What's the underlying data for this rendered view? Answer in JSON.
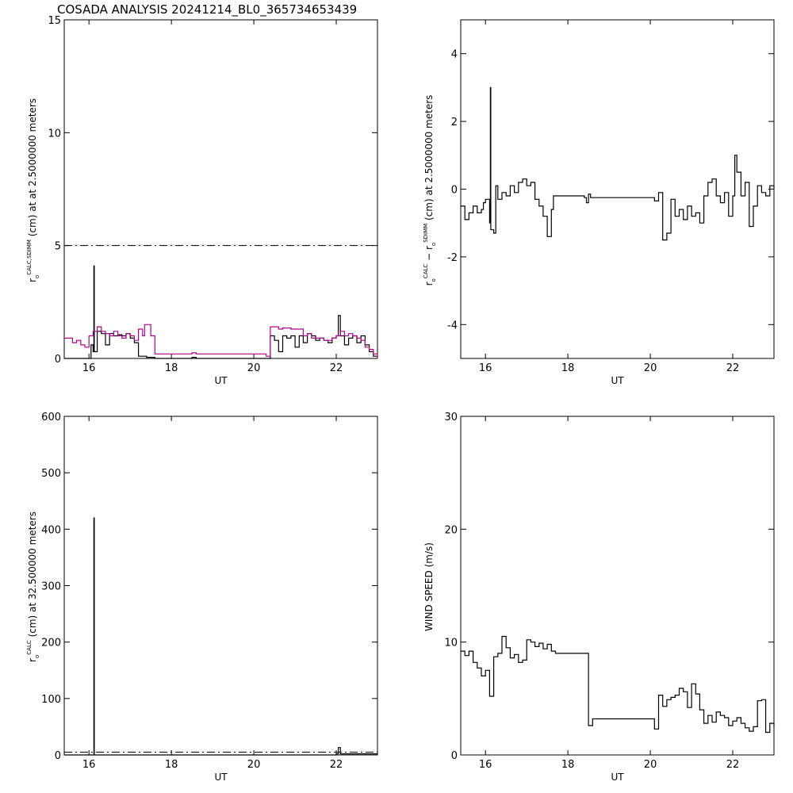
{
  "title": "COSADA ANALYSIS 20241214_BL0_365734653439",
  "chart_data": [
    {
      "type": "line",
      "xlabel": "UT",
      "ylabel_parts": [
        "r",
        "o",
        "CALC,SDIMM",
        " (cm) at  at 2.5000000 meters"
      ],
      "xlim": [
        15.4,
        23.0
      ],
      "ylim": [
        0,
        15
      ],
      "xticks": [
        16,
        18,
        20,
        22
      ],
      "yticks": [
        0,
        5,
        10,
        15
      ],
      "reference_line": {
        "y": 5,
        "style": "dash-dot"
      },
      "series": [
        {
          "color": "#000000",
          "points": [
            [
              15.4,
              0.0
            ],
            [
              16.0,
              0.0
            ],
            [
              16.05,
              0.6
            ],
            [
              16.1,
              0.3
            ],
            [
              16.12,
              4.1
            ],
            [
              16.13,
              0.3
            ],
            [
              16.2,
              1.2
            ],
            [
              16.3,
              1.1
            ],
            [
              16.4,
              0.6
            ],
            [
              16.5,
              1.1
            ],
            [
              16.6,
              1.0
            ],
            [
              16.7,
              1.05
            ],
            [
              16.8,
              1.0
            ],
            [
              16.9,
              1.1
            ],
            [
              17.0,
              0.9
            ],
            [
              17.1,
              0.7
            ],
            [
              17.2,
              0.1
            ],
            [
              17.4,
              0.05
            ],
            [
              17.6,
              0.0
            ],
            [
              17.8,
              0.0
            ],
            [
              18.0,
              0.0
            ],
            [
              18.4,
              0.0
            ],
            [
              18.5,
              0.05
            ],
            [
              18.6,
              0.0
            ],
            [
              20.0,
              0.0
            ],
            [
              20.3,
              0.0
            ],
            [
              20.4,
              1.0
            ],
            [
              20.5,
              0.8
            ],
            [
              20.6,
              0.3
            ],
            [
              20.7,
              1.0
            ],
            [
              20.8,
              0.9
            ],
            [
              20.9,
              1.0
            ],
            [
              21.0,
              0.5
            ],
            [
              21.1,
              1.0
            ],
            [
              21.2,
              0.7
            ],
            [
              21.3,
              1.1
            ],
            [
              21.4,
              1.0
            ],
            [
              21.5,
              0.8
            ],
            [
              21.6,
              0.9
            ],
            [
              21.7,
              0.8
            ],
            [
              21.8,
              0.7
            ],
            [
              21.9,
              0.9
            ],
            [
              22.0,
              1.0
            ],
            [
              22.05,
              1.9
            ],
            [
              22.1,
              1.0
            ],
            [
              22.2,
              0.6
            ],
            [
              22.3,
              0.9
            ],
            [
              22.4,
              1.0
            ],
            [
              22.5,
              0.7
            ],
            [
              22.6,
              1.0
            ],
            [
              22.7,
              0.6
            ],
            [
              22.8,
              0.3
            ],
            [
              22.9,
              0.1
            ],
            [
              23.0,
              0.0
            ]
          ]
        },
        {
          "color": "#b0008c",
          "points": [
            [
              15.4,
              0.9
            ],
            [
              15.6,
              0.7
            ],
            [
              15.7,
              0.8
            ],
            [
              15.8,
              0.6
            ],
            [
              15.9,
              0.5
            ],
            [
              16.0,
              1.0
            ],
            [
              16.1,
              1.2
            ],
            [
              16.2,
              1.4
            ],
            [
              16.3,
              1.2
            ],
            [
              16.4,
              1.1
            ],
            [
              16.5,
              1.0
            ],
            [
              16.6,
              1.2
            ],
            [
              16.7,
              1.0
            ],
            [
              16.8,
              0.9
            ],
            [
              16.9,
              1.1
            ],
            [
              17.0,
              1.0
            ],
            [
              17.1,
              0.8
            ],
            [
              17.2,
              1.3
            ],
            [
              17.3,
              1.0
            ],
            [
              17.35,
              1.5
            ],
            [
              17.5,
              1.0
            ],
            [
              17.6,
              0.2
            ],
            [
              18.0,
              0.2
            ],
            [
              18.4,
              0.2
            ],
            [
              18.5,
              0.25
            ],
            [
              18.6,
              0.2
            ],
            [
              20.0,
              0.2
            ],
            [
              20.2,
              0.2
            ],
            [
              20.3,
              0.1
            ],
            [
              20.4,
              1.4
            ],
            [
              20.6,
              1.3
            ],
            [
              20.7,
              1.35
            ],
            [
              20.9,
              1.3
            ],
            [
              21.1,
              1.3
            ],
            [
              21.2,
              1.0
            ],
            [
              21.3,
              1.1
            ],
            [
              21.4,
              0.9
            ],
            [
              21.6,
              0.9
            ],
            [
              21.7,
              0.8
            ],
            [
              21.9,
              0.9
            ],
            [
              22.0,
              1.0
            ],
            [
              22.1,
              1.2
            ],
            [
              22.2,
              1.0
            ],
            [
              22.3,
              1.1
            ],
            [
              22.4,
              1.0
            ],
            [
              22.5,
              0.9
            ],
            [
              22.6,
              0.8
            ],
            [
              22.7,
              0.5
            ],
            [
              22.8,
              0.4
            ],
            [
              22.9,
              0.2
            ],
            [
              23.0,
              0.0
            ]
          ]
        }
      ]
    },
    {
      "type": "line",
      "xlabel": "UT",
      "ylabel_parts": [
        "r",
        "o",
        "CALC",
        " − r",
        "o",
        "SDIMM",
        " (cm) at 2.5000000 meters"
      ],
      "xlim": [
        15.4,
        23.0
      ],
      "ylim": [
        -5,
        5
      ],
      "xticks": [
        16,
        18,
        20,
        22
      ],
      "yticks": [
        -4,
        -2,
        0,
        2,
        4
      ],
      "series": [
        {
          "color": "#000000",
          "points": [
            [
              15.4,
              -0.5
            ],
            [
              15.5,
              -0.9
            ],
            [
              15.6,
              -0.7
            ],
            [
              15.7,
              -0.5
            ],
            [
              15.8,
              -0.7
            ],
            [
              15.9,
              -0.6
            ],
            [
              15.95,
              -0.4
            ],
            [
              16.0,
              -0.3
            ],
            [
              16.1,
              -1.0
            ],
            [
              16.12,
              3.0
            ],
            [
              16.13,
              -1.2
            ],
            [
              16.2,
              -1.3
            ],
            [
              16.25,
              0.1
            ],
            [
              16.3,
              -0.3
            ],
            [
              16.4,
              -0.1
            ],
            [
              16.5,
              -0.2
            ],
            [
              16.6,
              0.1
            ],
            [
              16.7,
              -0.1
            ],
            [
              16.8,
              0.2
            ],
            [
              16.9,
              0.3
            ],
            [
              17.0,
              0.1
            ],
            [
              17.1,
              0.2
            ],
            [
              17.2,
              -0.3
            ],
            [
              17.3,
              -0.5
            ],
            [
              17.4,
              -0.8
            ],
            [
              17.5,
              -1.4
            ],
            [
              17.6,
              -0.6
            ],
            [
              17.65,
              -0.2
            ],
            [
              18.4,
              -0.25
            ],
            [
              18.45,
              -0.4
            ],
            [
              18.5,
              -0.15
            ],
            [
              18.55,
              -0.25
            ],
            [
              20.0,
              -0.25
            ],
            [
              20.1,
              -0.35
            ],
            [
              20.2,
              -0.1
            ],
            [
              20.3,
              -1.5
            ],
            [
              20.4,
              -1.3
            ],
            [
              20.5,
              -0.3
            ],
            [
              20.6,
              -0.8
            ],
            [
              20.7,
              -0.6
            ],
            [
              20.8,
              -0.9
            ],
            [
              20.9,
              -0.5
            ],
            [
              21.0,
              -0.8
            ],
            [
              21.1,
              -0.7
            ],
            [
              21.2,
              -1.0
            ],
            [
              21.3,
              -0.2
            ],
            [
              21.4,
              0.2
            ],
            [
              21.5,
              0.3
            ],
            [
              21.6,
              -0.2
            ],
            [
              21.7,
              -0.4
            ],
            [
              21.8,
              -0.1
            ],
            [
              21.9,
              -0.8
            ],
            [
              22.0,
              -0.2
            ],
            [
              22.05,
              1.0
            ],
            [
              22.1,
              0.5
            ],
            [
              22.2,
              -0.2
            ],
            [
              22.3,
              0.2
            ],
            [
              22.4,
              -1.1
            ],
            [
              22.5,
              -0.5
            ],
            [
              22.6,
              0.1
            ],
            [
              22.7,
              -0.1
            ],
            [
              22.8,
              -0.2
            ],
            [
              22.9,
              0.1
            ],
            [
              23.0,
              0.0
            ]
          ]
        }
      ]
    },
    {
      "type": "line",
      "xlabel": "UT",
      "ylabel_parts": [
        "r",
        "o",
        "CALC",
        " (cm) at 32.500000 meters"
      ],
      "xlim": [
        15.4,
        23.0
      ],
      "ylim": [
        0,
        600
      ],
      "xticks": [
        16,
        18,
        20,
        22
      ],
      "yticks": [
        0,
        100,
        200,
        300,
        400,
        500,
        600
      ],
      "reference_line": {
        "y": 5,
        "style": "dash-dot"
      },
      "series": [
        {
          "color": "#000000",
          "points": [
            [
              15.4,
              0
            ],
            [
              16.1,
              0
            ],
            [
              16.12,
              420
            ],
            [
              16.13,
              0
            ],
            [
              17.0,
              0
            ],
            [
              18.0,
              0
            ],
            [
              20.0,
              0
            ],
            [
              22.0,
              2
            ],
            [
              22.05,
              13
            ],
            [
              22.1,
              2
            ],
            [
              23.0,
              0
            ]
          ]
        }
      ]
    },
    {
      "type": "line",
      "xlabel": "UT",
      "ylabel": "WIND SPEED (m/s)",
      "xlim": [
        15.4,
        23.0
      ],
      "ylim": [
        0,
        30
      ],
      "xticks": [
        16,
        18,
        20,
        22
      ],
      "yticks": [
        0,
        10,
        20,
        30
      ],
      "series": [
        {
          "color": "#000000",
          "points": [
            [
              15.4,
              9.2
            ],
            [
              15.5,
              8.8
            ],
            [
              15.6,
              9.2
            ],
            [
              15.7,
              8.2
            ],
            [
              15.8,
              7.7
            ],
            [
              15.9,
              7.0
            ],
            [
              16.0,
              7.5
            ],
            [
              16.1,
              5.2
            ],
            [
              16.2,
              8.7
            ],
            [
              16.3,
              9.0
            ],
            [
              16.4,
              10.5
            ],
            [
              16.5,
              9.5
            ],
            [
              16.6,
              8.6
            ],
            [
              16.7,
              8.9
            ],
            [
              16.8,
              8.2
            ],
            [
              16.9,
              8.4
            ],
            [
              17.0,
              10.2
            ],
            [
              17.1,
              10.0
            ],
            [
              17.2,
              9.6
            ],
            [
              17.3,
              9.9
            ],
            [
              17.4,
              9.4
            ],
            [
              17.5,
              9.8
            ],
            [
              17.6,
              9.2
            ],
            [
              17.7,
              9.0
            ],
            [
              18.5,
              2.6
            ],
            [
              18.6,
              3.2
            ],
            [
              20.1,
              2.3
            ],
            [
              20.2,
              5.3
            ],
            [
              20.3,
              4.3
            ],
            [
              20.4,
              4.9
            ],
            [
              20.5,
              5.1
            ],
            [
              20.6,
              5.3
            ],
            [
              20.7,
              5.9
            ],
            [
              20.8,
              5.6
            ],
            [
              20.9,
              4.2
            ],
            [
              21.0,
              6.3
            ],
            [
              21.1,
              5.4
            ],
            [
              21.2,
              4.0
            ],
            [
              21.3,
              2.8
            ],
            [
              21.4,
              3.5
            ],
            [
              21.5,
              2.9
            ],
            [
              21.6,
              3.8
            ],
            [
              21.7,
              3.5
            ],
            [
              21.8,
              3.3
            ],
            [
              21.9,
              2.6
            ],
            [
              22.0,
              3.0
            ],
            [
              22.1,
              3.3
            ],
            [
              22.2,
              2.8
            ],
            [
              22.3,
              2.4
            ],
            [
              22.4,
              2.1
            ],
            [
              22.5,
              2.5
            ],
            [
              22.6,
              4.8
            ],
            [
              22.7,
              4.9
            ],
            [
              22.8,
              2.0
            ],
            [
              22.9,
              2.8
            ],
            [
              23.0,
              2.5
            ]
          ]
        }
      ]
    }
  ]
}
